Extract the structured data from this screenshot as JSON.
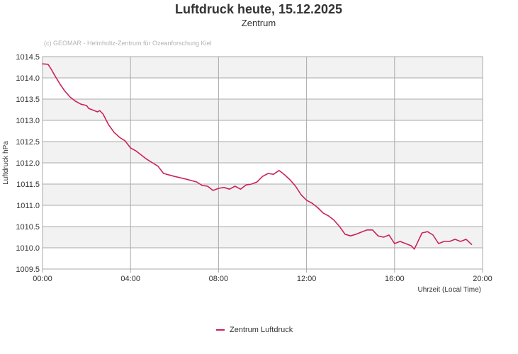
{
  "chart_data": {
    "type": "line",
    "title": "Luftdruck heute, 15.12.2025",
    "subtitle": "Zentrum",
    "credit": "(c) GEOMAR - Helmholtz-Zentrum für Ozeanforschung Kiel",
    "xlabel": "Uhrzeit (Local Time)",
    "ylabel": "Luftdruck hPa",
    "x_unit": "hours",
    "xlim": [
      0,
      20
    ],
    "ylim": [
      1009.5,
      1014.5
    ],
    "x_ticks": [
      0,
      4,
      8,
      12,
      16,
      20
    ],
    "x_tick_labels": [
      "00:00",
      "04:00",
      "08:00",
      "12:00",
      "16:00",
      "20:00"
    ],
    "y_ticks": [
      1009.5,
      1010.0,
      1010.5,
      1011.0,
      1011.5,
      1012.0,
      1012.5,
      1013.0,
      1013.5,
      1014.0,
      1014.5
    ],
    "y_tick_labels": [
      "1009.5",
      "1010.0",
      "1010.5",
      "1011.0",
      "1011.5",
      "1012.0",
      "1012.5",
      "1013.0",
      "1013.5",
      "1014.0",
      "1014.5"
    ],
    "grid": true,
    "alternate_bands": true,
    "legend_position": "bottom-center",
    "colors": {
      "series": "#cc2255",
      "band": "#f2f2f2",
      "grid": "#aaaaaa"
    },
    "series": [
      {
        "name": "Zentrum Luftdruck",
        "x": [
          0,
          0.25,
          0.4,
          0.6,
          0.8,
          1.0,
          1.25,
          1.5,
          1.75,
          2.0,
          2.1,
          2.25,
          2.5,
          2.6,
          2.75,
          3.0,
          3.25,
          3.5,
          3.75,
          4.0,
          4.25,
          4.5,
          4.75,
          5.0,
          5.25,
          5.5,
          6.0,
          6.5,
          7.0,
          7.25,
          7.5,
          7.75,
          8.0,
          8.25,
          8.5,
          8.75,
          9.0,
          9.25,
          9.5,
          9.75,
          10.0,
          10.25,
          10.5,
          10.75,
          11.0,
          11.25,
          11.5,
          11.75,
          12.0,
          12.25,
          12.5,
          12.75,
          13.0,
          13.25,
          13.5,
          13.75,
          14.0,
          14.25,
          14.5,
          14.75,
          15.0,
          15.25,
          15.5,
          15.75,
          16.0,
          16.25,
          16.5,
          16.75,
          16.9,
          17.0,
          17.25,
          17.5,
          17.75,
          18.0,
          18.25,
          18.5,
          18.75,
          19.0,
          19.25,
          19.5
        ],
        "y": [
          1014.33,
          1014.32,
          1014.2,
          1014.02,
          1013.85,
          1013.7,
          1013.55,
          1013.45,
          1013.38,
          1013.35,
          1013.28,
          1013.25,
          1013.2,
          1013.23,
          1013.15,
          1012.9,
          1012.72,
          1012.6,
          1012.52,
          1012.35,
          1012.28,
          1012.18,
          1012.08,
          1012.0,
          1011.92,
          1011.75,
          1011.68,
          1011.62,
          1011.55,
          1011.47,
          1011.45,
          1011.35,
          1011.4,
          1011.42,
          1011.38,
          1011.45,
          1011.38,
          1011.48,
          1011.5,
          1011.55,
          1011.68,
          1011.75,
          1011.73,
          1011.82,
          1011.72,
          1011.6,
          1011.45,
          1011.25,
          1011.12,
          1011.05,
          1010.95,
          1010.82,
          1010.75,
          1010.65,
          1010.5,
          1010.32,
          1010.28,
          1010.32,
          1010.37,
          1010.42,
          1010.42,
          1010.28,
          1010.25,
          1010.3,
          1010.1,
          1010.15,
          1010.1,
          1010.05,
          1009.97,
          1010.08,
          1010.35,
          1010.38,
          1010.3,
          1010.1,
          1010.15,
          1010.15,
          1010.2,
          1010.15,
          1010.2,
          1010.08
        ]
      }
    ]
  }
}
